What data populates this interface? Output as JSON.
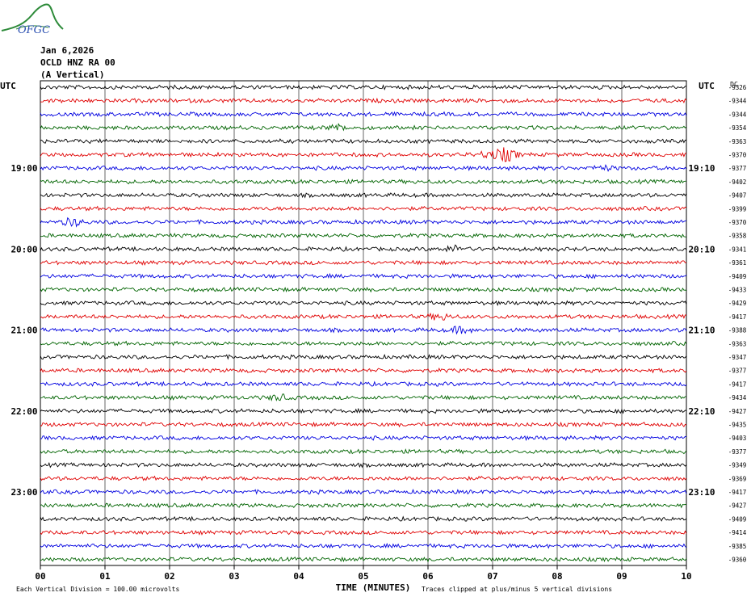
{
  "logo_text": "OFGC",
  "header": {
    "date": "Jan 6,2026",
    "station": "OCLD HNZ RA 00",
    "component": "(A Vertical)"
  },
  "chart_data": {
    "type": "line",
    "title": "",
    "left_axis_label": "UTC",
    "right_axis_label": "UTC",
    "right_header": "DC",
    "xlabel": "TIME (MINUTES)",
    "x_ticks": [
      "00",
      "01",
      "02",
      "03",
      "04",
      "05",
      "06",
      "07",
      "08",
      "09",
      "10"
    ],
    "xlim": [
      0,
      10
    ],
    "trace_colors": [
      "#000000",
      "#e00000",
      "#0000e0",
      "#006400"
    ],
    "left_hour_labels": [
      {
        "row": 6,
        "label": "19:00"
      },
      {
        "row": 12,
        "label": "20:00"
      },
      {
        "row": 18,
        "label": "21:00"
      },
      {
        "row": 24,
        "label": "22:00"
      },
      {
        "row": 30,
        "label": "23:00"
      }
    ],
    "right_hour_labels": [
      {
        "row": 6,
        "label": "19:10"
      },
      {
        "row": 12,
        "label": "20:10"
      },
      {
        "row": 18,
        "label": "21:10"
      },
      {
        "row": 24,
        "label": "22:10"
      },
      {
        "row": 30,
        "label": "23:10"
      }
    ],
    "dc_offsets": [
      -9326,
      -9344,
      -9344,
      -9354,
      -9363,
      -9370,
      -9377,
      -9402,
      -9407,
      -9399,
      -9370,
      -9358,
      -9341,
      -9361,
      -9409,
      -9433,
      -9429,
      -9417,
      -9388,
      -9363,
      -9347,
      -9377,
      -9417,
      -9434,
      -9427,
      -9435,
      -9403,
      -9377,
      -9349,
      -9369,
      -9417,
      -9427,
      -9409,
      -9414,
      -9385,
      -9360
    ],
    "events": [
      {
        "row": 5,
        "minute": 7.2,
        "amplitude": 3.5
      },
      {
        "row": 5,
        "minute": 6.9,
        "amplitude": 1.5
      },
      {
        "row": 10,
        "minute": 0.5,
        "amplitude": 2.0
      },
      {
        "row": 12,
        "minute": 6.4,
        "amplitude": 1.6
      },
      {
        "row": 17,
        "minute": 6.2,
        "amplitude": 1.6
      },
      {
        "row": 18,
        "minute": 6.5,
        "amplitude": 1.5
      },
      {
        "row": 23,
        "minute": 3.7,
        "amplitude": 1.4
      },
      {
        "row": 3,
        "minute": 4.6,
        "amplitude": 1.3
      },
      {
        "row": 6,
        "minute": 8.7,
        "amplitude": 1.3
      }
    ],
    "footer_left": "Each Vertical Division =  100.00 microvolts",
    "footer_right": "Traces clipped at plus/minus 5 vertical divisions"
  }
}
